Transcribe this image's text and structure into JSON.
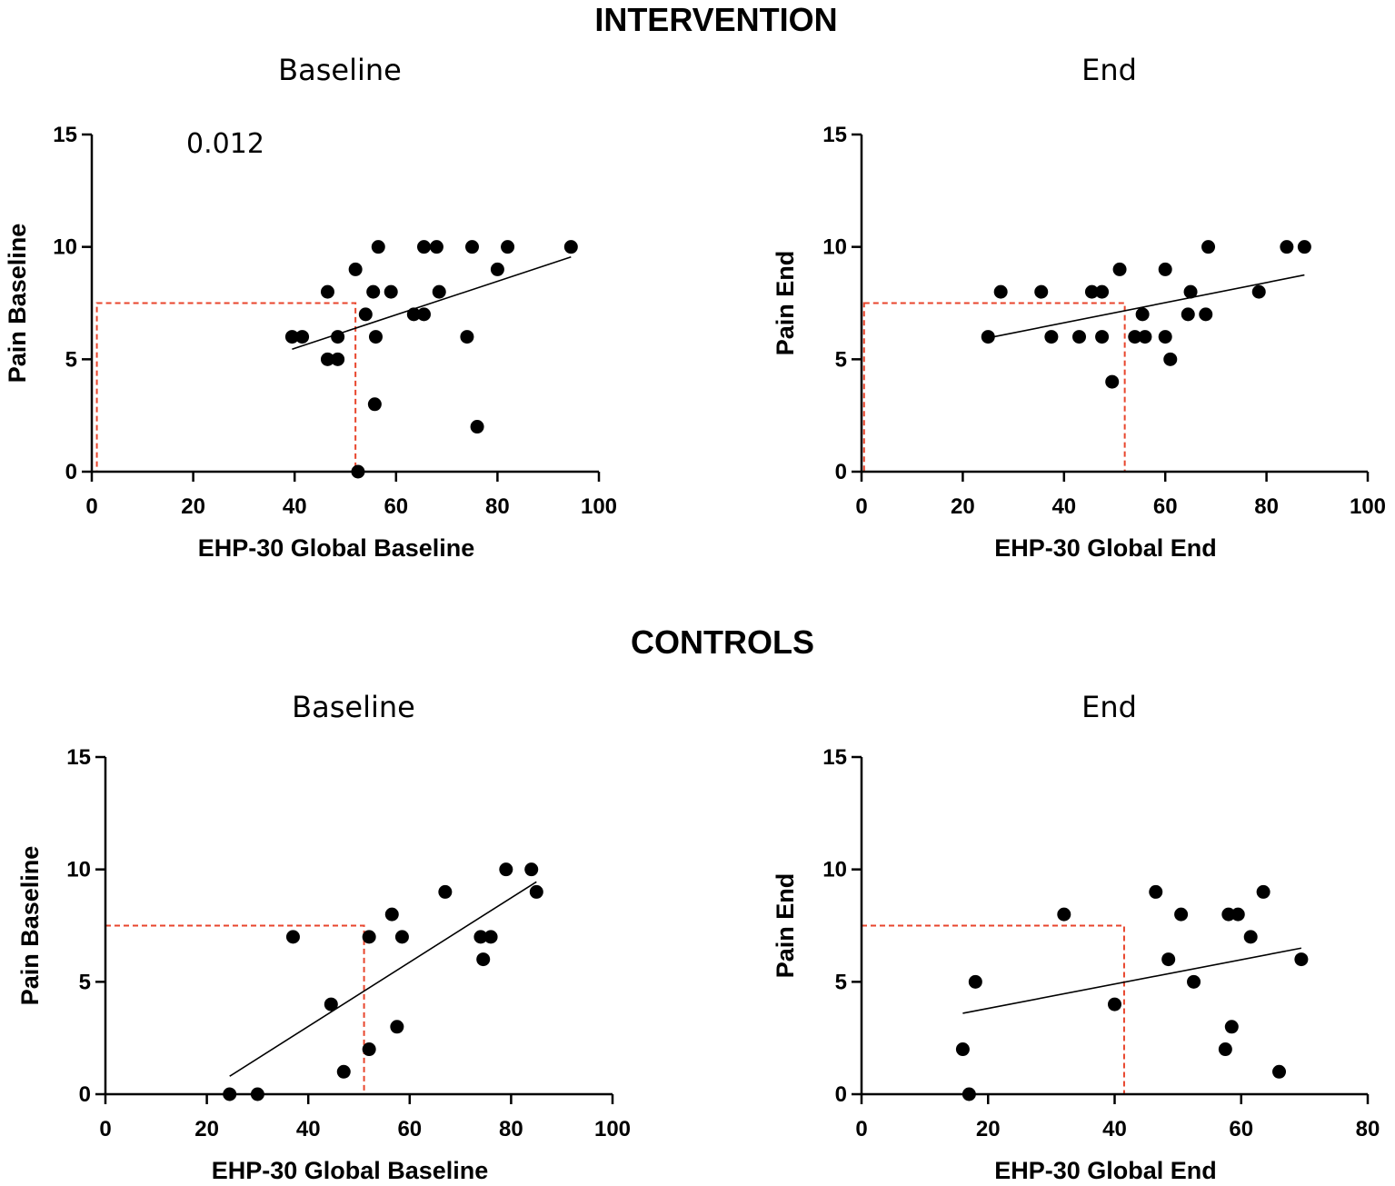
{
  "sections": [
    {
      "title": "INTERVENTION"
    },
    {
      "title": "CONTROLS"
    }
  ],
  "colors": {
    "points": "#000000",
    "fit_line": "#000000",
    "threshold_box": "#e8452c"
  },
  "chart_data": [
    {
      "type": "scatter",
      "section": "INTERVENTION",
      "title": "Baseline",
      "xlabel": "EHP-30 Global Baseline",
      "ylabel": "Pain Baseline",
      "xlim": [
        0,
        100
      ],
      "ylim": [
        0,
        15
      ],
      "xticks": [
        0,
        20,
        40,
        60,
        80,
        100
      ],
      "yticks": [
        0,
        5,
        10,
        15
      ],
      "annotation": "0.012",
      "points": [
        [
          39.5,
          6
        ],
        [
          41.5,
          6
        ],
        [
          46.5,
          8
        ],
        [
          46.5,
          5
        ],
        [
          48.5,
          6
        ],
        [
          48.5,
          5
        ],
        [
          52,
          9
        ],
        [
          52.5,
          0
        ],
        [
          54,
          7
        ],
        [
          55.5,
          8
        ],
        [
          56,
          6
        ],
        [
          56.5,
          10
        ],
        [
          55.8,
          3
        ],
        [
          59,
          8
        ],
        [
          63.5,
          7
        ],
        [
          65.5,
          10
        ],
        [
          65.5,
          7
        ],
        [
          68,
          10
        ],
        [
          68.5,
          8
        ],
        [
          74,
          6
        ],
        [
          75,
          10
        ],
        [
          76,
          2
        ],
        [
          80,
          9
        ],
        [
          82,
          10
        ],
        [
          94.5,
          10
        ]
      ],
      "fit_line": [
        [
          39.5,
          5.45
        ],
        [
          94.5,
          9.55
        ]
      ],
      "threshold_box": {
        "x": [
          1,
          52
        ],
        "y": [
          0,
          7.5
        ]
      }
    },
    {
      "type": "scatter",
      "section": "INTERVENTION",
      "title": "End",
      "xlabel": "EHP-30 Global End",
      "ylabel": "Pain End",
      "xlim": [
        0,
        100
      ],
      "ylim": [
        0,
        15
      ],
      "xticks": [
        0,
        20,
        40,
        60,
        80,
        100
      ],
      "yticks": [
        0,
        5,
        10,
        15
      ],
      "points": [
        [
          25,
          6
        ],
        [
          27.5,
          8
        ],
        [
          35.5,
          8
        ],
        [
          37.5,
          6
        ],
        [
          43,
          6
        ],
        [
          45.5,
          8
        ],
        [
          47.5,
          8
        ],
        [
          47.5,
          6
        ],
        [
          49.5,
          4
        ],
        [
          51,
          9
        ],
        [
          54,
          6
        ],
        [
          55.5,
          7
        ],
        [
          56,
          6
        ],
        [
          60,
          9
        ],
        [
          60,
          6
        ],
        [
          61,
          5
        ],
        [
          64.5,
          7
        ],
        [
          65,
          8
        ],
        [
          68,
          7
        ],
        [
          68.5,
          10
        ],
        [
          78.5,
          8
        ],
        [
          84,
          10
        ],
        [
          87.5,
          10
        ]
      ],
      "fit_line": [
        [
          25,
          5.95
        ],
        [
          87.5,
          8.75
        ]
      ],
      "threshold_box": {
        "x": [
          0.5,
          52
        ],
        "y": [
          0,
          7.5
        ]
      }
    },
    {
      "type": "scatter",
      "section": "CONTROLS",
      "title": "Baseline",
      "xlabel": "EHP-30 Global Baseline",
      "ylabel": "Pain Baseline",
      "xlim": [
        0,
        100
      ],
      "ylim": [
        0,
        15
      ],
      "xticks": [
        0,
        20,
        40,
        60,
        80,
        100
      ],
      "yticks": [
        0,
        5,
        10,
        15
      ],
      "points": [
        [
          24.5,
          0
        ],
        [
          30,
          0
        ],
        [
          37,
          7
        ],
        [
          44.5,
          4
        ],
        [
          47,
          1
        ],
        [
          52,
          7
        ],
        [
          52,
          2
        ],
        [
          56.5,
          8
        ],
        [
          57.5,
          3
        ],
        [
          58.5,
          7
        ],
        [
          67,
          9
        ],
        [
          74,
          7
        ],
        [
          74.5,
          6
        ],
        [
          76,
          7
        ],
        [
          79,
          10
        ],
        [
          84,
          10
        ],
        [
          85,
          9
        ]
      ],
      "fit_line": [
        [
          24.5,
          0.8
        ],
        [
          85,
          9.45
        ]
      ],
      "threshold_box": {
        "x": [
          0,
          51
        ],
        "y": [
          0,
          7.5
        ]
      }
    },
    {
      "type": "scatter",
      "section": "CONTROLS",
      "title": "End",
      "xlabel": "EHP-30 Global End",
      "ylabel": "Pain End",
      "xlim": [
        0,
        80
      ],
      "ylim": [
        0,
        15
      ],
      "xticks": [
        0,
        20,
        40,
        60,
        80
      ],
      "yticks": [
        0,
        5,
        10,
        15
      ],
      "points": [
        [
          16,
          2
        ],
        [
          17,
          0
        ],
        [
          18,
          5
        ],
        [
          32,
          8
        ],
        [
          40,
          4
        ],
        [
          46.5,
          9
        ],
        [
          48.5,
          6
        ],
        [
          50.5,
          8
        ],
        [
          52.5,
          5
        ],
        [
          57.5,
          2
        ],
        [
          58,
          8
        ],
        [
          58.5,
          3
        ],
        [
          59.5,
          8
        ],
        [
          61.5,
          7
        ],
        [
          63.5,
          9
        ],
        [
          66,
          1
        ],
        [
          69.5,
          6
        ]
      ],
      "fit_line": [
        [
          16,
          3.6
        ],
        [
          69.5,
          6.5
        ]
      ],
      "threshold_box": {
        "x": [
          0,
          41.5
        ],
        "y": [
          0,
          7.5
        ]
      }
    }
  ]
}
